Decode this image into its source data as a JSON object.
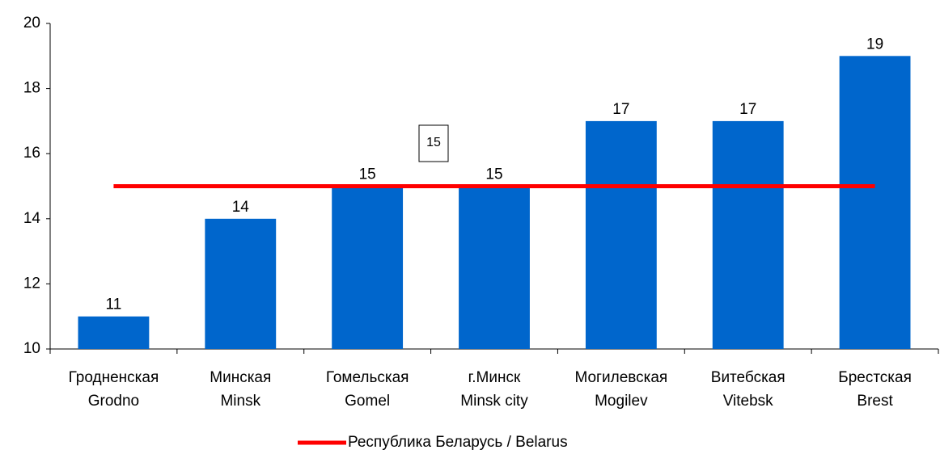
{
  "chart_data": {
    "type": "bar",
    "categories": [
      [
        "Гродненская",
        "Grodno"
      ],
      [
        "Минская",
        "Minsk"
      ],
      [
        "Гомельская",
        "Gomel"
      ],
      [
        "г.Минск",
        "Minsk city"
      ],
      [
        "Могилевская",
        "Mogilev"
      ],
      [
        "Витебская",
        "Vitebsk"
      ],
      [
        "Брестская",
        "Brest"
      ]
    ],
    "values": [
      11,
      14,
      15,
      15,
      17,
      17,
      19
    ],
    "color": "#0066cc",
    "line_series": {
      "name": "Республика Беларусь / Belarus",
      "color": "#ff0000",
      "values": [
        15,
        15,
        15,
        15,
        15,
        15,
        15
      ]
    },
    "annotation": "15",
    "ylim": [
      10,
      20
    ],
    "yticks": [
      10,
      12,
      14,
      16,
      18,
      20
    ],
    "grid": false
  }
}
